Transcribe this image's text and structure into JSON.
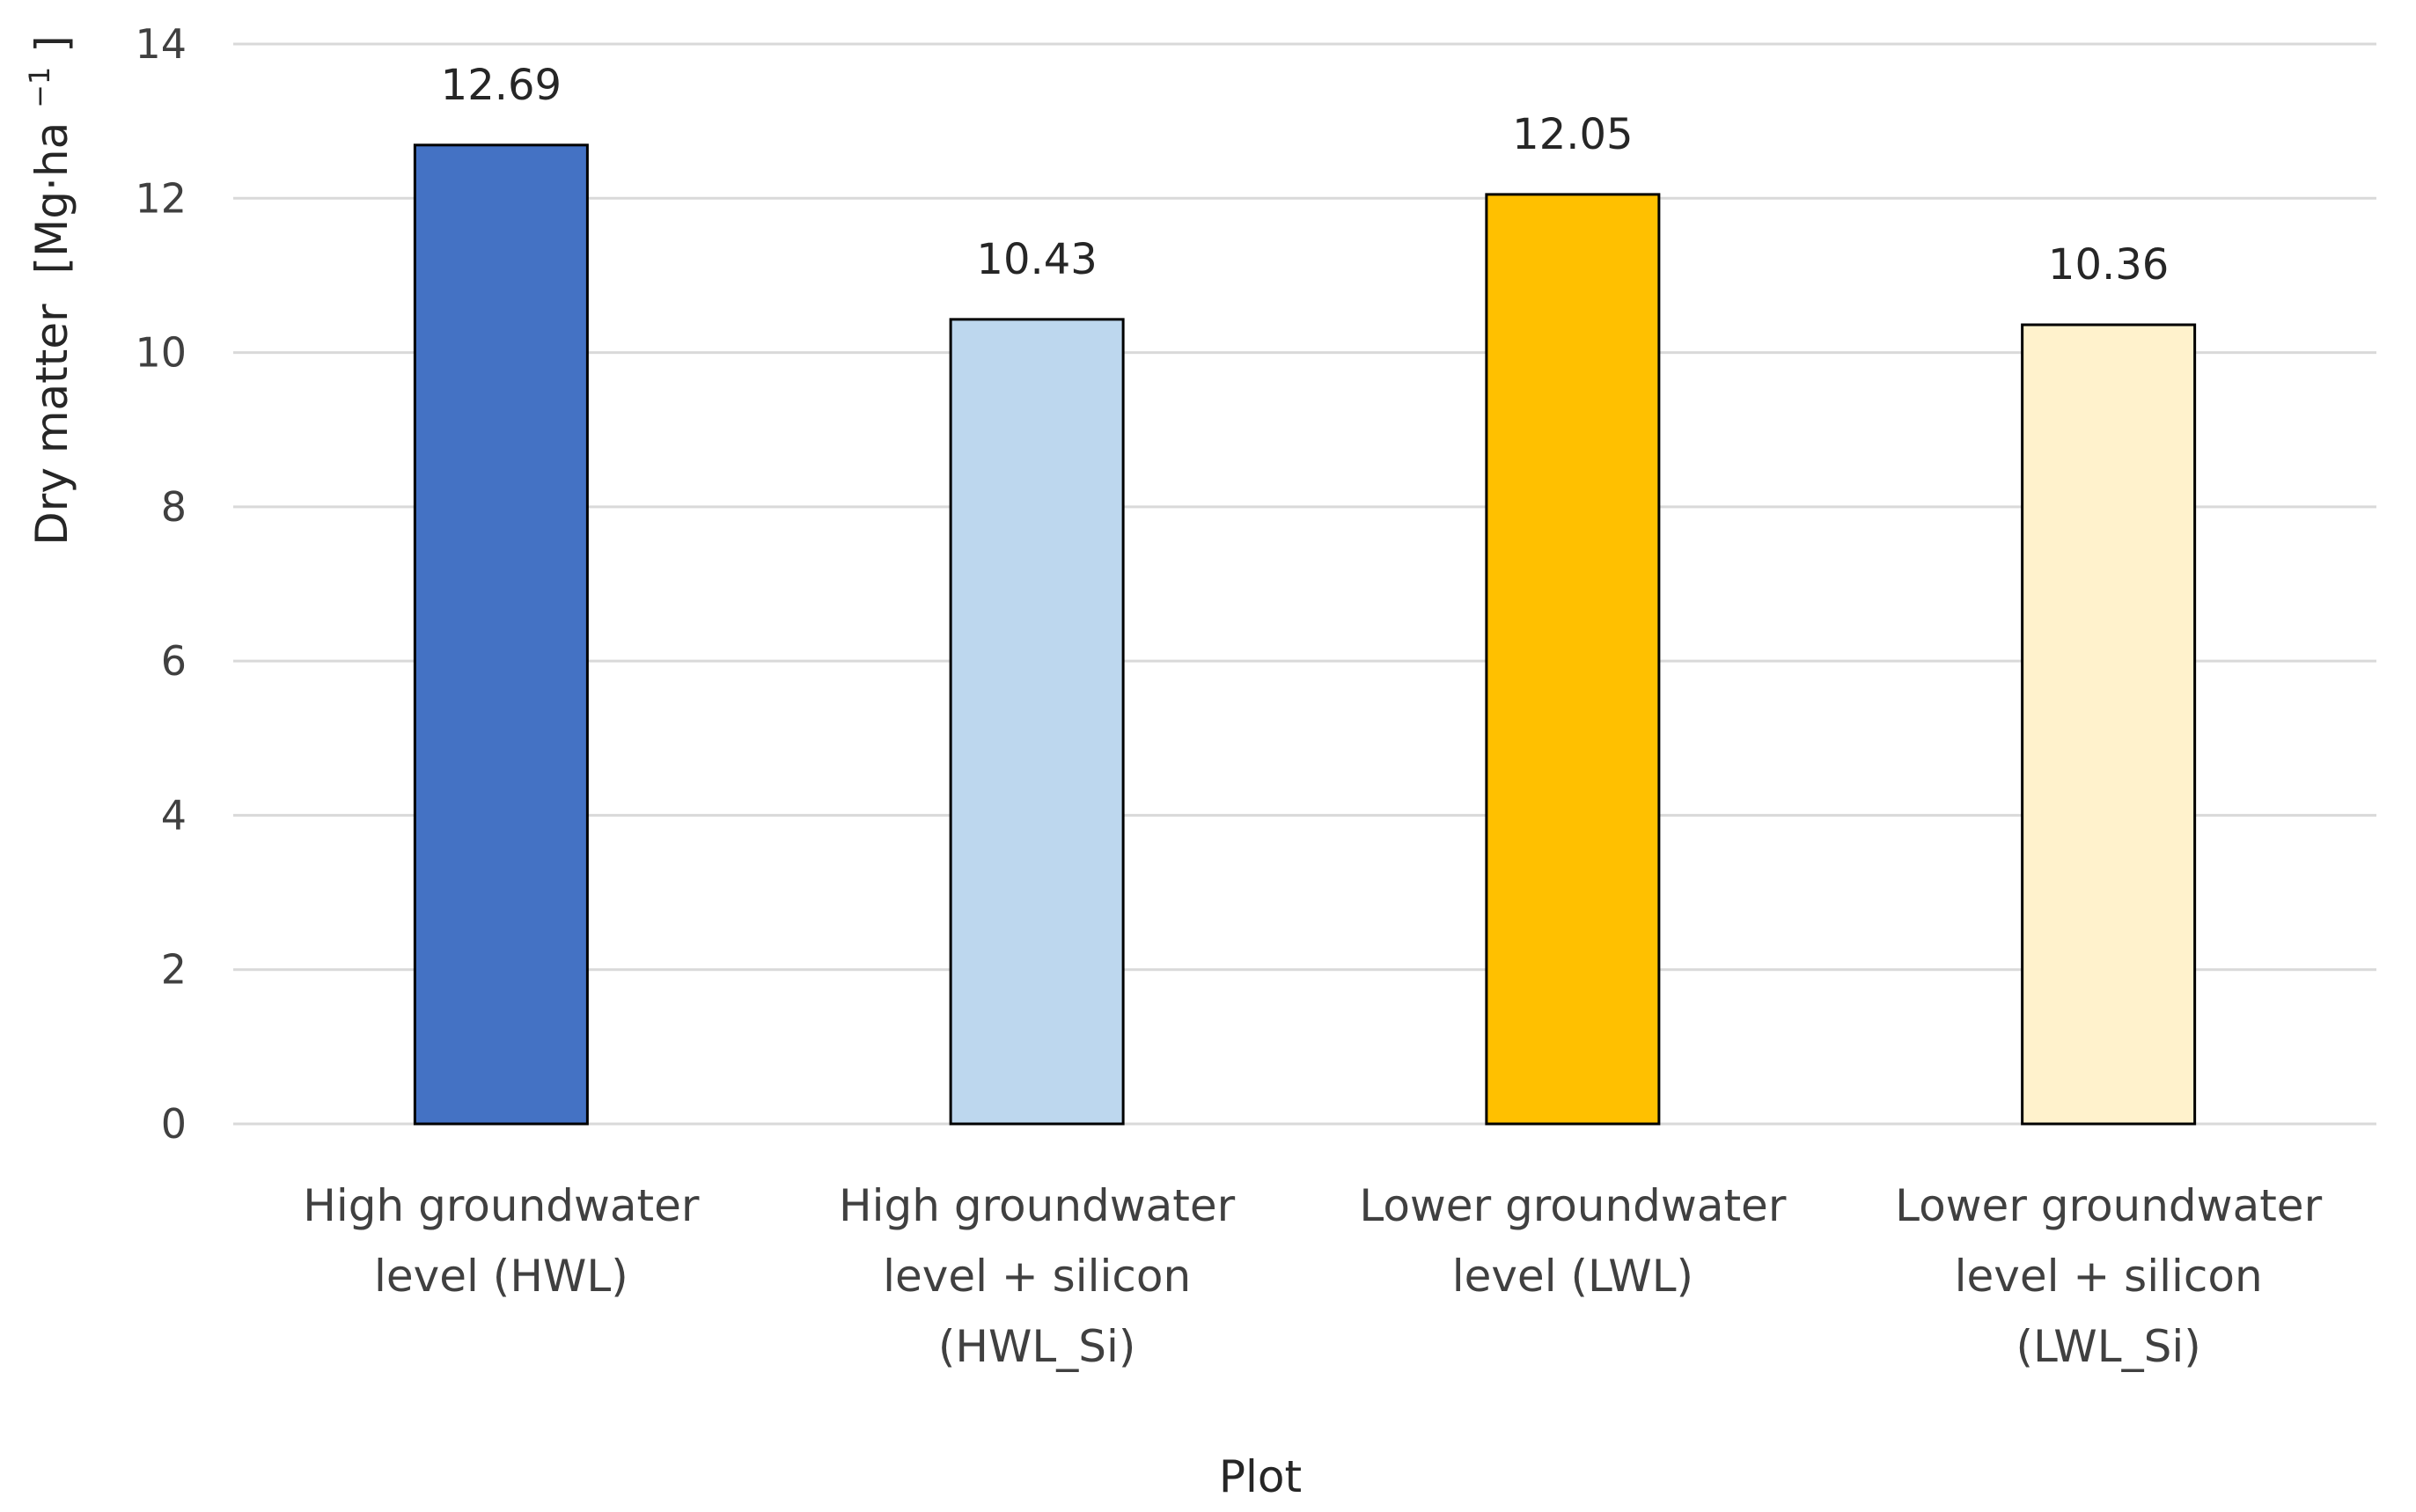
{
  "chart_data": {
    "type": "bar",
    "categories": [
      [
        "High groundwater",
        "level (HWL)"
      ],
      [
        "High groundwater",
        "level + silicon",
        "(HWL_Si)"
      ],
      [
        "Lower groundwater",
        "level (LWL)"
      ],
      [
        "Lower groundwater",
        "level + silicon",
        "(LWL_Si)"
      ]
    ],
    "values": [
      12.69,
      10.43,
      12.05,
      10.36
    ],
    "value_labels": [
      "12.69",
      "10.43",
      "12.05",
      "10.36"
    ],
    "colors": [
      "#4472c4",
      "#bdd7ee",
      "#ffc000",
      "#fff2cc"
    ],
    "xlabel": "Plot",
    "ylabel": {
      "main": "Dry matter",
      "unit_prefix": "[Mg·ha",
      "unit_exponent": "−1",
      "unit_suffix": "]"
    },
    "ylim": [
      0,
      14
    ],
    "yticks": [
      0,
      2,
      4,
      6,
      8,
      10,
      12,
      14
    ],
    "grid": true,
    "legend": "none"
  }
}
